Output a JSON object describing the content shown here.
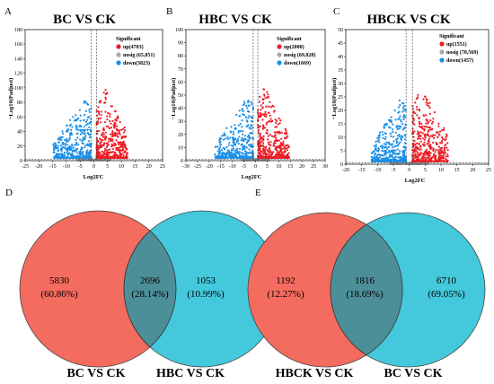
{
  "volcano_plots": [
    {
      "panel_label": "A",
      "title": "BC VS CK",
      "legend_title": "Significant",
      "legend": [
        {
          "key": "up",
          "label": "up(4703)",
          "color": "#ee1c25"
        },
        {
          "key": "nosig",
          "label": "nosig (65,051)",
          "color": "#a8a8a8"
        },
        {
          "key": "down",
          "label": "down(3823)",
          "color": "#1a8fe8"
        }
      ]
    },
    {
      "panel_label": "B",
      "title": "HBC VS CK",
      "legend_title": "Significant",
      "legend": [
        {
          "key": "up",
          "label": "up(2080)",
          "color": "#ee1c25"
        },
        {
          "key": "nosig",
          "label": "nosig (69,828)",
          "color": "#a8a8a8"
        },
        {
          "key": "down",
          "label": "down(1669)",
          "color": "#1a8fe8"
        }
      ]
    },
    {
      "panel_label": "C",
      "title": "HBCK VS CK",
      "legend_title": "Significant",
      "legend": [
        {
          "key": "up",
          "label": "up(1551)",
          "color": "#ee1c25"
        },
        {
          "key": "nosig",
          "label": "nosig (70,569)",
          "color": "#a8a8a8"
        },
        {
          "key": "down",
          "label": "down(1457)",
          "color": "#1a8fe8"
        }
      ]
    }
  ],
  "venn_diagrams": [
    {
      "panel_label": "D",
      "left": {
        "name": "BC VS CK",
        "count": "5830",
        "pct": "(60.86%)",
        "color": "#f46b5f"
      },
      "overlap": {
        "count": "2696",
        "pct": "(28.14%)",
        "color": "#4d8f99"
      },
      "right": {
        "name": "HBC VS CK",
        "count": "1053",
        "pct": "(10.99%)",
        "color": "#44c8dc"
      }
    },
    {
      "panel_label": "E",
      "left": {
        "name": "HBCK VS CK",
        "count": "1192",
        "pct": "(12.27%)",
        "color": "#f46b5f"
      },
      "overlap": {
        "count": "1816",
        "pct": "(18.69%)",
        "color": "#4d8f99"
      },
      "right": {
        "name": "BC VS CK",
        "count": "6710",
        "pct": "(69.05%)",
        "color": "#44c8dc"
      }
    }
  ],
  "chart_data": [
    {
      "type": "scatter",
      "title": "BC VS CK",
      "xlabel": "Log2FC",
      "ylabel": "−Log10(Padjust)",
      "xlim": [
        -25,
        25
      ],
      "ylim": [
        0,
        180
      ],
      "xticks": [
        "-25",
        "-20",
        "-15",
        "-10",
        "-5",
        "0",
        "5",
        "10",
        "15",
        "20",
        "25"
      ],
      "yticks": [
        "0",
        "20",
        "40",
        "60",
        "80",
        "100",
        "120",
        "140",
        "160",
        "180"
      ],
      "series": [
        {
          "name": "up",
          "count": 4703
        },
        {
          "name": "nosig",
          "count": 65051
        },
        {
          "name": "down",
          "count": 3823
        }
      ]
    },
    {
      "type": "scatter",
      "title": "HBC VS CK",
      "xlabel": "Log2FC",
      "ylabel": "−Log10(Padjust)",
      "xlim": [
        -30,
        30
      ],
      "ylim": [
        0,
        100
      ],
      "xticks": [
        "-30",
        "-25",
        "-20",
        "-15",
        "-10",
        "-5",
        "0",
        "5",
        "10",
        "15",
        "20",
        "25",
        "30"
      ],
      "yticks": [
        "0",
        "10",
        "20",
        "30",
        "40",
        "50",
        "60",
        "70",
        "80",
        "90",
        "100"
      ],
      "series": [
        {
          "name": "up",
          "count": 2080
        },
        {
          "name": "nosig",
          "count": 69828
        },
        {
          "name": "down",
          "count": 1669
        }
      ]
    },
    {
      "type": "scatter",
      "title": "HBCK VS CK",
      "xlabel": "Log2FC",
      "ylabel": "−Log10(Padjust)",
      "xlim": [
        -20,
        25
      ],
      "ylim": [
        0,
        50
      ],
      "xticks": [
        "-20",
        "-15",
        "-10",
        "-5",
        "0",
        "5",
        "10",
        "15",
        "20",
        "25"
      ],
      "yticks": [
        "0",
        "5",
        "10",
        "15",
        "20",
        "25",
        "30",
        "35",
        "40",
        "45",
        "50"
      ],
      "series": [
        {
          "name": "up",
          "count": 1551
        },
        {
          "name": "nosig",
          "count": 70569
        },
        {
          "name": "down",
          "count": 1457
        }
      ]
    }
  ]
}
